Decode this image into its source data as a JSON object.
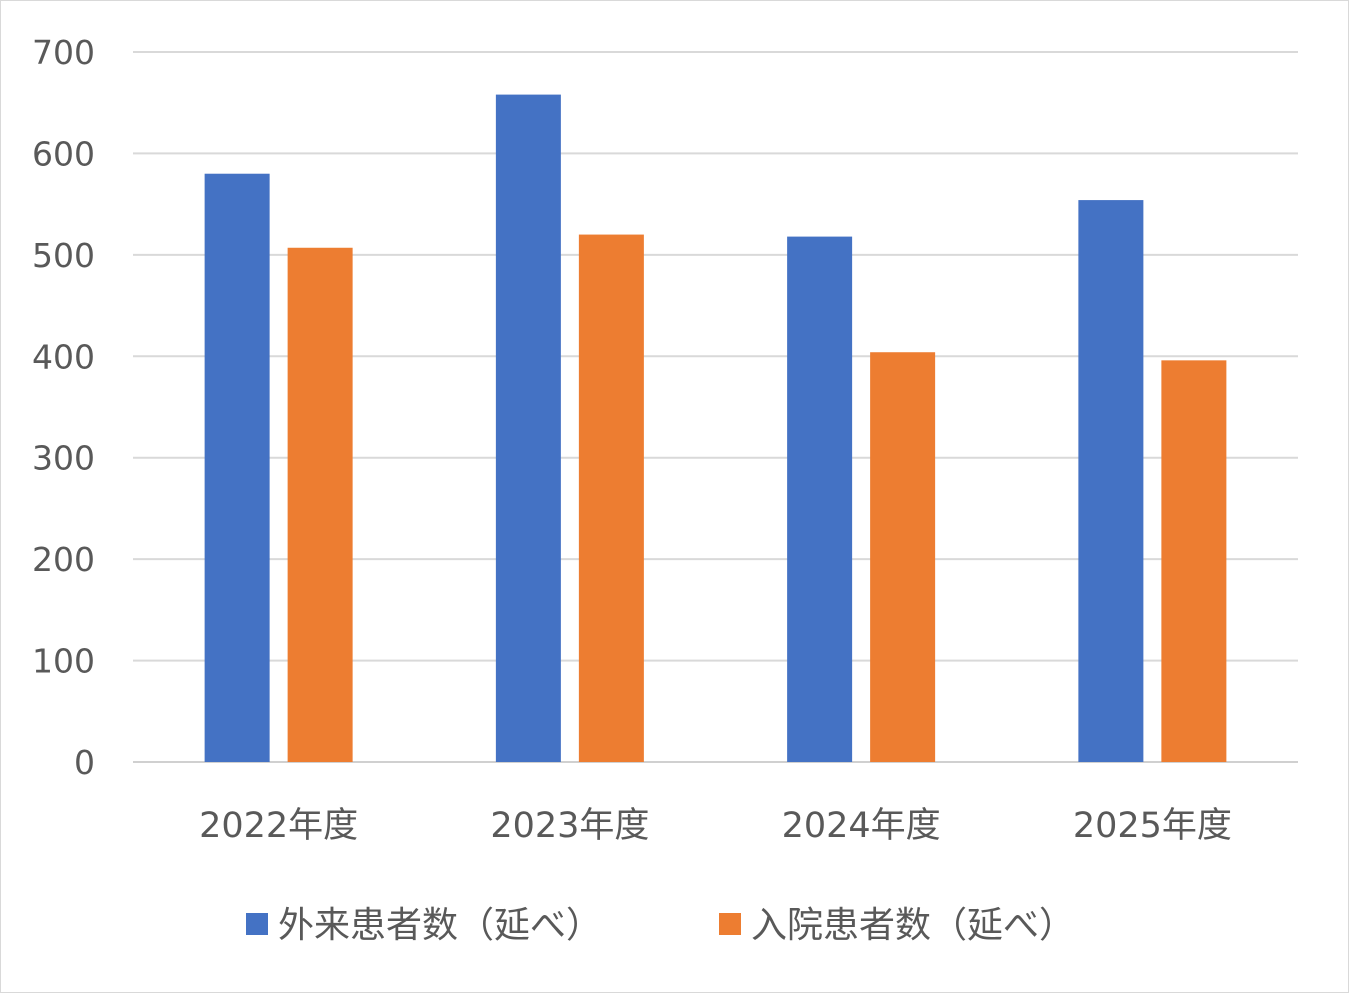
{
  "chart_data": {
    "type": "bar",
    "categories": [
      "2022年度",
      "2023年度",
      "2024年度",
      "2025年度"
    ],
    "series": [
      {
        "name": "外来患者数（延べ）",
        "color": "#4472c4",
        "values": [
          580,
          658,
          518,
          554
        ]
      },
      {
        "name": "入院患者数（延べ）",
        "color": "#ed7d31",
        "values": [
          507,
          520,
          404,
          396
        ]
      }
    ],
    "title": "",
    "xlabel": "",
    "ylabel": "",
    "ylim": [
      0,
      700
    ],
    "yticks": [
      "0",
      "100",
      "200",
      "300",
      "400",
      "500",
      "600",
      "700"
    ],
    "grid": true,
    "legend_position": "bottom"
  }
}
